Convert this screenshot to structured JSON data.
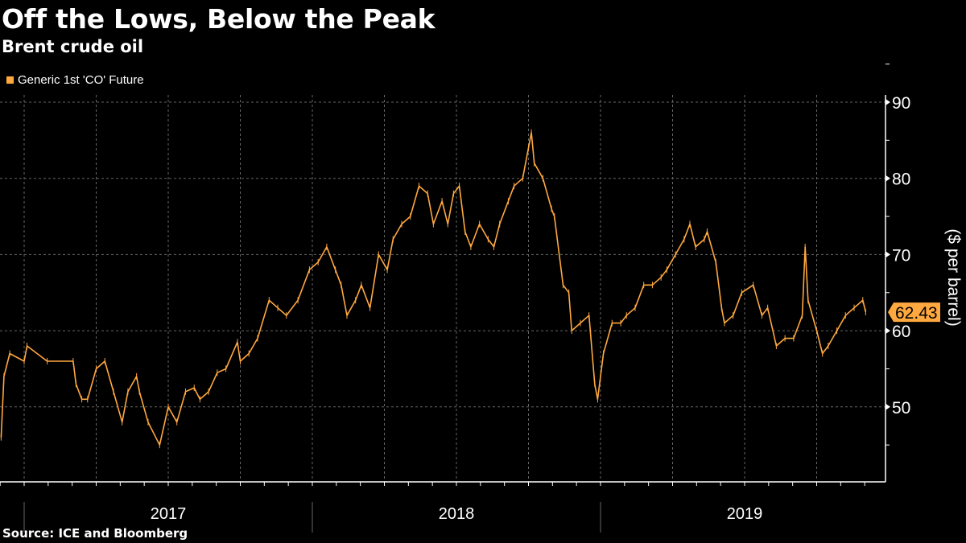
{
  "chart_data": {
    "type": "line",
    "title": "Off the Lows, Below the Peak",
    "subtitle": "Brent crude oil",
    "legend": [
      {
        "label": "Generic 1st 'CO' Future",
        "color": "#ffa83f"
      }
    ],
    "legend_placement": "top-left",
    "ylabel": "($ per barrel)",
    "ylim": [
      40.2,
      90.9
    ],
    "y_ticks": [
      50,
      60,
      70,
      80,
      90
    ],
    "x_labels": [
      {
        "label": "2017",
        "at": 2017.5
      },
      {
        "label": "2018",
        "at": 2018.5
      },
      {
        "label": "2019",
        "at": 2019.5
      }
    ],
    "xlim": [
      2016.916,
      2019.99
    ],
    "grid": true,
    "last_value_label": "62.43",
    "last_value": 62.43,
    "series": [
      {
        "name": "Generic 1st 'CO' Future",
        "x": [
          2016.92,
          2016.93,
          2016.95,
          2017.0,
          2017.01,
          2017.08,
          2017.17,
          2017.18,
          2017.2,
          2017.22,
          2017.25,
          2017.28,
          2017.31,
          2017.34,
          2017.36,
          2017.39,
          2017.4,
          2017.43,
          2017.47,
          2017.5,
          2017.53,
          2017.56,
          2017.59,
          2017.61,
          2017.64,
          2017.67,
          2017.7,
          2017.74,
          2017.75,
          2017.78,
          2017.81,
          2017.85,
          2017.88,
          2017.91,
          2017.95,
          2017.99,
          2018.02,
          2018.05,
          2018.08,
          2018.1,
          2018.12,
          2018.15,
          2018.17,
          2018.2,
          2018.23,
          2018.26,
          2018.28,
          2018.31,
          2018.34,
          2018.37,
          2018.4,
          2018.42,
          2018.45,
          2018.47,
          2018.49,
          2018.51,
          2018.53,
          2018.55,
          2018.58,
          2018.61,
          2018.63,
          2018.65,
          2018.68,
          2018.7,
          2018.73,
          2018.75,
          2018.76,
          2018.77,
          2018.8,
          2018.83,
          2018.84,
          2018.87,
          2018.89,
          2018.9,
          2018.93,
          2018.96,
          2018.98,
          2018.99,
          2019.01,
          2019.04,
          2019.07,
          2019.09,
          2019.12,
          2019.15,
          2019.18,
          2019.21,
          2019.23,
          2019.26,
          2019.29,
          2019.31,
          2019.33,
          2019.36,
          2019.37,
          2019.4,
          2019.42,
          2019.43,
          2019.46,
          2019.49,
          2019.53,
          2019.56,
          2019.58,
          2019.61,
          2019.64,
          2019.67,
          2019.7,
          2019.71,
          2019.72,
          2019.75,
          2019.77,
          2019.79,
          2019.82,
          2019.85,
          2019.88,
          2019.91,
          2019.92
        ],
        "values": [
          46,
          54,
          57,
          56,
          58,
          56,
          56,
          53,
          51,
          51,
          55,
          56,
          52,
          48,
          52,
          54,
          52,
          48,
          45,
          50,
          48,
          52,
          52.5,
          51,
          52,
          54.5,
          55,
          58.5,
          56,
          57,
          59,
          64,
          63,
          62,
          64,
          68,
          69,
          71,
          68,
          66,
          62,
          64,
          66,
          63,
          70,
          68,
          72,
          74,
          75,
          79,
          78,
          74,
          77,
          74,
          78,
          79,
          73,
          71,
          74,
          72,
          71,
          74,
          77,
          79,
          80,
          84,
          86,
          82,
          80,
          76,
          75,
          66,
          65,
          60,
          61,
          62,
          53,
          51,
          57,
          61,
          61,
          62,
          63,
          66,
          66,
          67,
          68,
          70,
          72,
          74,
          71,
          72,
          73,
          69,
          63,
          61,
          62,
          65,
          66,
          62,
          63,
          58,
          59,
          59,
          62,
          71,
          64,
          60,
          57,
          58,
          60,
          62,
          63,
          64,
          62.43
        ]
      }
    ],
    "source": "Source: ICE and Bloomberg"
  }
}
